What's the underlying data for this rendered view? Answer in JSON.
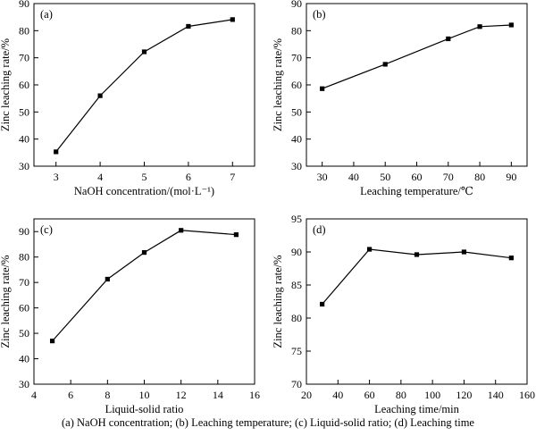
{
  "caption": "(a) NaOH concentration; (b) Leaching temperature; (c) Liquid-solid ratio; (d) Leaching time",
  "chart_data": [
    {
      "type": "line",
      "panel_label": "(a)",
      "xlabel": "NaOH concentration/(mol·L⁻¹)",
      "ylabel": "Zinc leaching rate/%",
      "x": [
        3,
        4,
        5,
        6,
        7
      ],
      "series": [
        {
          "values": [
            35.3,
            56.0,
            72.2,
            81.6,
            84.1
          ]
        }
      ],
      "xlim": [
        2.5,
        7.5
      ],
      "ylim": [
        30,
        90
      ],
      "xticks": [
        3,
        4,
        5,
        6,
        7
      ],
      "yticks": [
        30,
        40,
        50,
        60,
        70,
        80,
        90
      ],
      "grid": false,
      "marker": "square",
      "line_color": "#000000"
    },
    {
      "type": "line",
      "panel_label": "(b)",
      "xlabel": "Leaching temperature/℃",
      "ylabel": "Zinc leaching rate/%",
      "x": [
        30,
        50,
        70,
        80,
        90
      ],
      "series": [
        {
          "values": [
            58.6,
            67.6,
            77.0,
            81.5,
            82.1
          ]
        }
      ],
      "xlim": [
        25,
        95
      ],
      "ylim": [
        30,
        90
      ],
      "xticks": [
        30,
        40,
        50,
        60,
        70,
        80,
        90
      ],
      "yticks": [
        30,
        40,
        50,
        60,
        70,
        80,
        90
      ],
      "grid": false,
      "marker": "square",
      "line_color": "#000000"
    },
    {
      "type": "line",
      "panel_label": "(c)",
      "xlabel": "Liquid-solid ratio",
      "ylabel": "Zinc leaching rate/%",
      "x": [
        5,
        8,
        10,
        12,
        15
      ],
      "series": [
        {
          "values": [
            47.0,
            71.3,
            81.8,
            90.5,
            88.8
          ]
        }
      ],
      "xlim": [
        4,
        16
      ],
      "ylim": [
        30,
        95
      ],
      "xticks": [
        4,
        6,
        8,
        10,
        12,
        14,
        16
      ],
      "yticks": [
        30,
        40,
        50,
        60,
        70,
        80,
        90
      ],
      "grid": false,
      "marker": "square",
      "line_color": "#000000"
    },
    {
      "type": "line",
      "panel_label": "(d)",
      "xlabel": "Leaching time/min",
      "ylabel": "Zinc leaching rate/%",
      "x": [
        30,
        60,
        90,
        120,
        150
      ],
      "series": [
        {
          "values": [
            82.1,
            90.4,
            89.6,
            90.0,
            89.1
          ]
        }
      ],
      "xlim": [
        20,
        160
      ],
      "ylim": [
        70,
        95
      ],
      "xticks": [
        20,
        40,
        60,
        80,
        100,
        120,
        140,
        160
      ],
      "yticks": [
        70,
        75,
        80,
        85,
        90,
        95
      ],
      "grid": false,
      "marker": "square",
      "line_color": "#000000"
    }
  ]
}
